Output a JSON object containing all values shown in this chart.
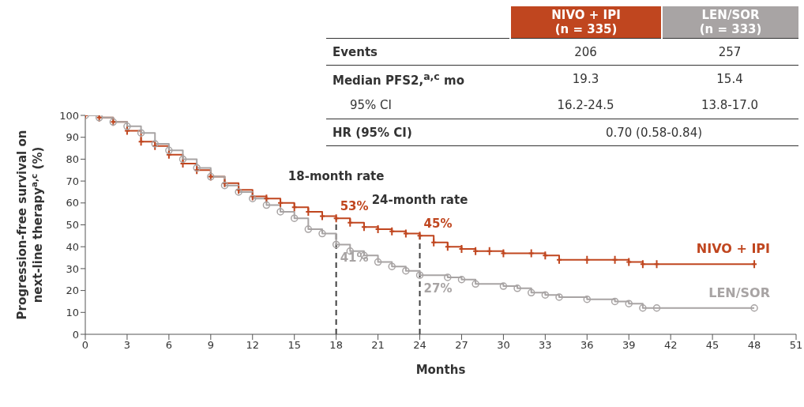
{
  "chart_data": {
    "type": "step",
    "xlabel": "Months",
    "ylabel": "Progression-free survival on next-line therapy$^{a,c}$ (%)",
    "xlim": [
      0,
      51
    ],
    "xticks": [
      0,
      3,
      6,
      9,
      12,
      15,
      18,
      21,
      24,
      27,
      30,
      33,
      36,
      39,
      42,
      45,
      48,
      51
    ],
    "ylim": [
      0,
      100
    ],
    "yticks": [
      0,
      10,
      20,
      30,
      40,
      50,
      60,
      70,
      80,
      90,
      100
    ],
    "grid": false,
    "legend": false,
    "series": [
      {
        "name": "NIVO + IPI",
        "color": "#c0461f",
        "marker": "cross",
        "x": [
          0,
          1,
          2,
          3,
          4,
          5,
          6,
          7,
          8,
          9,
          10,
          11,
          12,
          13,
          14,
          15,
          16,
          17,
          18,
          19,
          20,
          21,
          22,
          23,
          24,
          25,
          26,
          27,
          28,
          29,
          30,
          32,
          33,
          34,
          36,
          38,
          39,
          40,
          41,
          48
        ],
        "values": [
          100,
          99,
          97,
          93,
          88,
          86,
          82,
          78,
          75,
          72,
          69,
          66,
          63,
          62,
          60,
          58,
          56,
          54,
          53,
          51,
          49,
          48,
          47,
          46,
          45,
          42,
          40,
          39,
          38,
          38,
          37,
          37,
          36,
          34,
          34,
          34,
          33,
          32,
          32,
          32
        ]
      },
      {
        "name": "LEN/SOR",
        "color": "#a8a4a4",
        "marker": "circle",
        "x": [
          0,
          1,
          2,
          3,
          4,
          5,
          6,
          7,
          8,
          9,
          10,
          11,
          12,
          13,
          14,
          15,
          16,
          17,
          18,
          19,
          20,
          21,
          22,
          23,
          24,
          26,
          27,
          28,
          30,
          31,
          32,
          33,
          34,
          36,
          38,
          39,
          40,
          41,
          48
        ],
        "values": [
          100,
          99,
          97,
          95,
          92,
          87,
          84,
          80,
          76,
          72,
          68,
          65,
          62,
          59,
          56,
          53,
          48,
          46,
          41,
          38,
          36,
          33,
          31,
          29,
          27,
          26,
          25,
          23,
          22,
          21,
          19,
          18,
          17,
          16,
          15,
          14,
          12,
          12,
          12
        ]
      }
    ],
    "ref_lines": [
      {
        "axis": "x",
        "value": 18,
        "label": "18-month rate",
        "line_style": "dashed",
        "color": "#404040"
      },
      {
        "axis": "x",
        "value": 24,
        "label": "24-month rate",
        "line_style": "dashed",
        "color": "#404040"
      }
    ],
    "annotations": [
      "53%",
      "45%",
      "41%",
      "27%",
      "NIVO + IPI\n(n = 335)",
      "LEN/SOR\n(n = 333)",
      "Events",
      "206",
      "257",
      "Median PFS2,$^{a,c}$ mo",
      "19.3",
      "15.4",
      "95% CI",
      "16.2-24.5",
      "13.8-17.0",
      "HR (95% CI)",
      "0.70 (0.58-0.84)"
    ]
  }
}
